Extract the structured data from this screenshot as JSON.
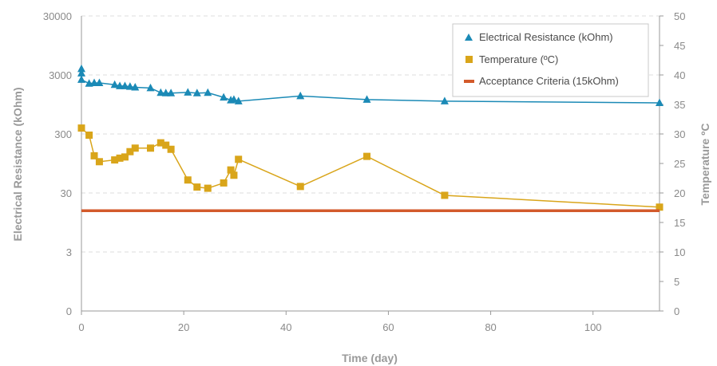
{
  "chart_data": {
    "type": "line",
    "title": "",
    "xlabel": "Time (day)",
    "ylabel_left": "Electrical Resistance (kOhm)",
    "ylabel_right": "Temperature ºC",
    "x_ticks": [
      "0",
      "20",
      "40",
      "60",
      "80",
      "100"
    ],
    "y_left_ticks": [
      "0",
      "3",
      "30",
      "300",
      "3000",
      "30000"
    ],
    "y_right_ticks": [
      "0",
      "5",
      "10",
      "15",
      "20",
      "25",
      "30",
      "35",
      "40",
      "45",
      "50"
    ],
    "xlim": [
      0,
      113
    ],
    "y_left_scale": "log",
    "y_left_range": [
      0,
      30000
    ],
    "y_right_range": [
      0,
      50
    ],
    "grid": "horizontal dashed",
    "legend_position": "top-right",
    "series": [
      {
        "name": "Electrical Resistance (kOhm)",
        "axis": "left",
        "color": "#1b8ab6",
        "marker": "triangle",
        "points": [
          [
            0,
            3800
          ],
          [
            0,
            3200
          ],
          [
            0,
            2500
          ],
          [
            1.5,
            2150
          ],
          [
            2.5,
            2200
          ],
          [
            3.5,
            2200
          ],
          [
            6.5,
            2050
          ],
          [
            7.5,
            1950
          ],
          [
            8.5,
            1950
          ],
          [
            9.5,
            1900
          ],
          [
            10.5,
            1850
          ],
          [
            13.5,
            1800
          ],
          [
            15.5,
            1500
          ],
          [
            16.5,
            1480
          ],
          [
            17.5,
            1480
          ],
          [
            20.8,
            1520
          ],
          [
            22.6,
            1480
          ],
          [
            24.7,
            1500
          ],
          [
            27.8,
            1250
          ],
          [
            29.2,
            1120
          ],
          [
            29.8,
            1150
          ],
          [
            30.7,
            1080
          ],
          [
            42.8,
            1320
          ],
          [
            55.8,
            1150
          ],
          [
            71,
            1080
          ],
          [
            113,
            1010
          ]
        ]
      },
      {
        "name": "Temperature (ºC)",
        "axis": "right",
        "color": "#d9a51a",
        "marker": "square",
        "points": [
          [
            0,
            31
          ],
          [
            1.5,
            29.8
          ],
          [
            2.5,
            26.3
          ],
          [
            3.5,
            25.3
          ],
          [
            6.5,
            25.6
          ],
          [
            7.5,
            25.9
          ],
          [
            8.5,
            26.1
          ],
          [
            9.5,
            27
          ],
          [
            10.5,
            27.6
          ],
          [
            13.5,
            27.6
          ],
          [
            15.5,
            28.5
          ],
          [
            16.5,
            28.1
          ],
          [
            17.5,
            27.4
          ],
          [
            20.8,
            22.2
          ],
          [
            22.6,
            21
          ],
          [
            24.7,
            20.8
          ],
          [
            27.8,
            21.7
          ],
          [
            29.2,
            23.9
          ],
          [
            29.8,
            23
          ],
          [
            30.7,
            25.7
          ],
          [
            42.8,
            21.1
          ],
          [
            55.8,
            26.2
          ],
          [
            71,
            19.6
          ],
          [
            113,
            17.6
          ]
        ]
      },
      {
        "name": "Acceptance Criteria (15kOhm)",
        "axis": "left",
        "color": "#d35a2b",
        "marker": "line",
        "points": [
          [
            0,
            15
          ],
          [
            113,
            15
          ]
        ]
      }
    ]
  }
}
